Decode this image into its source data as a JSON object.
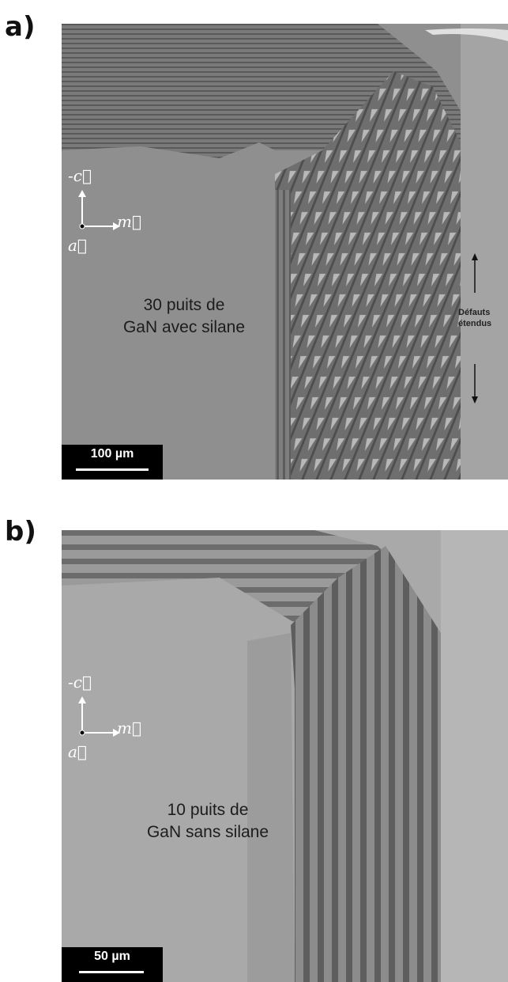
{
  "panels": [
    {
      "label": "a)",
      "caption_line1": "30 puits de",
      "caption_line2": "GaN avec silane",
      "scale_bar": "100 µm",
      "axes": {
        "c": "-c⃗",
        "m": "m⃗",
        "a": "a⃗"
      },
      "annotation_line1": "Défauts",
      "annotation_line2": "étendus"
    },
    {
      "label": "b)",
      "caption_line1": "10 puits de",
      "caption_line2": "GaN sans silane",
      "scale_bar": "50 µm",
      "axes": {
        "c": "-c⃗",
        "m": "m⃗",
        "a": "a⃗"
      }
    }
  ]
}
